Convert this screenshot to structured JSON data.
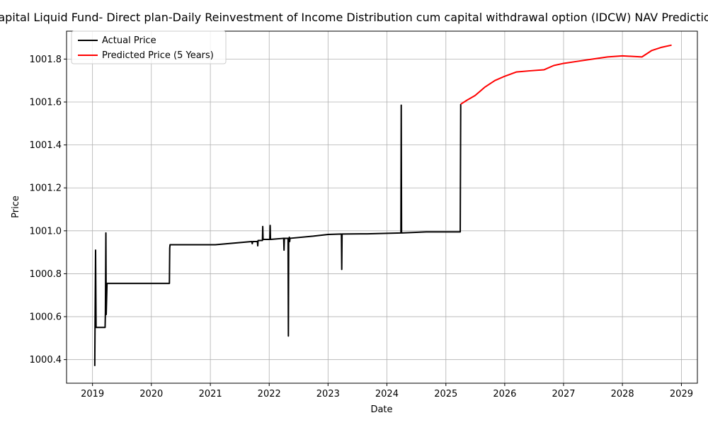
{
  "chart_data": {
    "type": "line",
    "title": "Capital Liquid Fund- Direct plan-Daily Reinvestment of Income Distribution cum capital withdrawal option (IDCW) NAV Prediction",
    "xlabel": "Date",
    "ylabel": "Price",
    "xlim": [
      "2018-07-24",
      "2029-04-10"
    ],
    "ylim": [
      1000.29,
      1001.93
    ],
    "x_ticks": [
      "2019",
      "2020",
      "2021",
      "2022",
      "2023",
      "2024",
      "2025",
      "2026",
      "2027",
      "2028",
      "2029"
    ],
    "y_ticks": [
      1000.4,
      1000.6,
      1000.8,
      1001.0,
      1001.2,
      1001.4,
      1001.6,
      1001.8
    ],
    "y_tick_labels": [
      "1000.4",
      "1000.6",
      "1000.8",
      "1001.0",
      "1001.2",
      "1001.4",
      "1001.6",
      "1001.8"
    ],
    "grid": true,
    "legend_position": "top-left",
    "series": [
      {
        "name": "Actual Price",
        "color": "#000000",
        "points": [
          [
            "2019-01-15",
            1000.37
          ],
          [
            "2019-01-20",
            1000.91
          ],
          [
            "2019-01-23",
            1000.55
          ],
          [
            "2019-03-20",
            1000.55
          ],
          [
            "2019-03-22",
            1000.62
          ],
          [
            "2019-03-25",
            1000.99
          ],
          [
            "2019-03-27",
            1000.61
          ],
          [
            "2019-04-01",
            1000.755
          ],
          [
            "2020-04-22",
            1000.755
          ],
          [
            "2020-04-24",
            1000.92
          ],
          [
            "2020-04-26",
            1000.935
          ],
          [
            "2021-02-01",
            1000.935
          ],
          [
            "2021-09-15",
            1000.95
          ],
          [
            "2021-09-18",
            1000.94
          ],
          [
            "2021-09-21",
            1000.95
          ],
          [
            "2021-10-20",
            1000.95
          ],
          [
            "2021-10-22",
            1000.93
          ],
          [
            "2021-10-24",
            1000.955
          ],
          [
            "2021-11-20",
            1000.955
          ],
          [
            "2021-11-22",
            1001.02
          ],
          [
            "2021-11-24",
            1000.96
          ],
          [
            "2022-01-05",
            1000.96
          ],
          [
            "2022-01-07",
            1001.025
          ],
          [
            "2022-01-09",
            1000.96
          ],
          [
            "2022-04-01",
            1000.965
          ],
          [
            "2022-04-03",
            1000.91
          ],
          [
            "2022-04-05",
            1000.965
          ],
          [
            "2022-04-28",
            1000.965
          ],
          [
            "2022-04-30",
            1000.51
          ],
          [
            "2022-05-02",
            1000.96
          ],
          [
            "2022-05-06",
            1000.97
          ],
          [
            "2022-05-08",
            1000.95
          ],
          [
            "2022-05-10",
            1000.965
          ],
          [
            "2022-10-01",
            1000.975
          ],
          [
            "2023-01-01",
            1000.983
          ],
          [
            "2023-03-25",
            1000.985
          ],
          [
            "2023-03-27",
            1000.82
          ],
          [
            "2023-03-29",
            1000.985
          ],
          [
            "2023-09-01",
            1000.986
          ],
          [
            "2024-03-28",
            1000.99
          ],
          [
            "2024-03-30",
            1001.585
          ],
          [
            "2024-04-01",
            1000.99
          ],
          [
            "2024-09-01",
            1000.995
          ],
          [
            "2025-03-31",
            1000.995
          ],
          [
            "2025-04-03",
            1001.59
          ]
        ]
      },
      {
        "name": "Predicted Price (5 Years)",
        "color": "#ff0000",
        "points": [
          [
            "2025-04-03",
            1001.59
          ],
          [
            "2025-05-15",
            1001.61
          ],
          [
            "2025-07-01",
            1001.63
          ],
          [
            "2025-09-01",
            1001.67
          ],
          [
            "2025-11-01",
            1001.7
          ],
          [
            "2026-01-01",
            1001.72
          ],
          [
            "2026-03-15",
            1001.74
          ],
          [
            "2026-06-01",
            1001.745
          ],
          [
            "2026-09-01",
            1001.75
          ],
          [
            "2026-11-01",
            1001.77
          ],
          [
            "2027-01-01",
            1001.78
          ],
          [
            "2027-04-01",
            1001.79
          ],
          [
            "2027-07-01",
            1001.8
          ],
          [
            "2027-10-01",
            1001.81
          ],
          [
            "2028-01-01",
            1001.815
          ],
          [
            "2028-05-01",
            1001.81
          ],
          [
            "2028-07-01",
            1001.84
          ],
          [
            "2028-09-01",
            1001.855
          ],
          [
            "2028-11-01",
            1001.865
          ]
        ]
      }
    ]
  }
}
